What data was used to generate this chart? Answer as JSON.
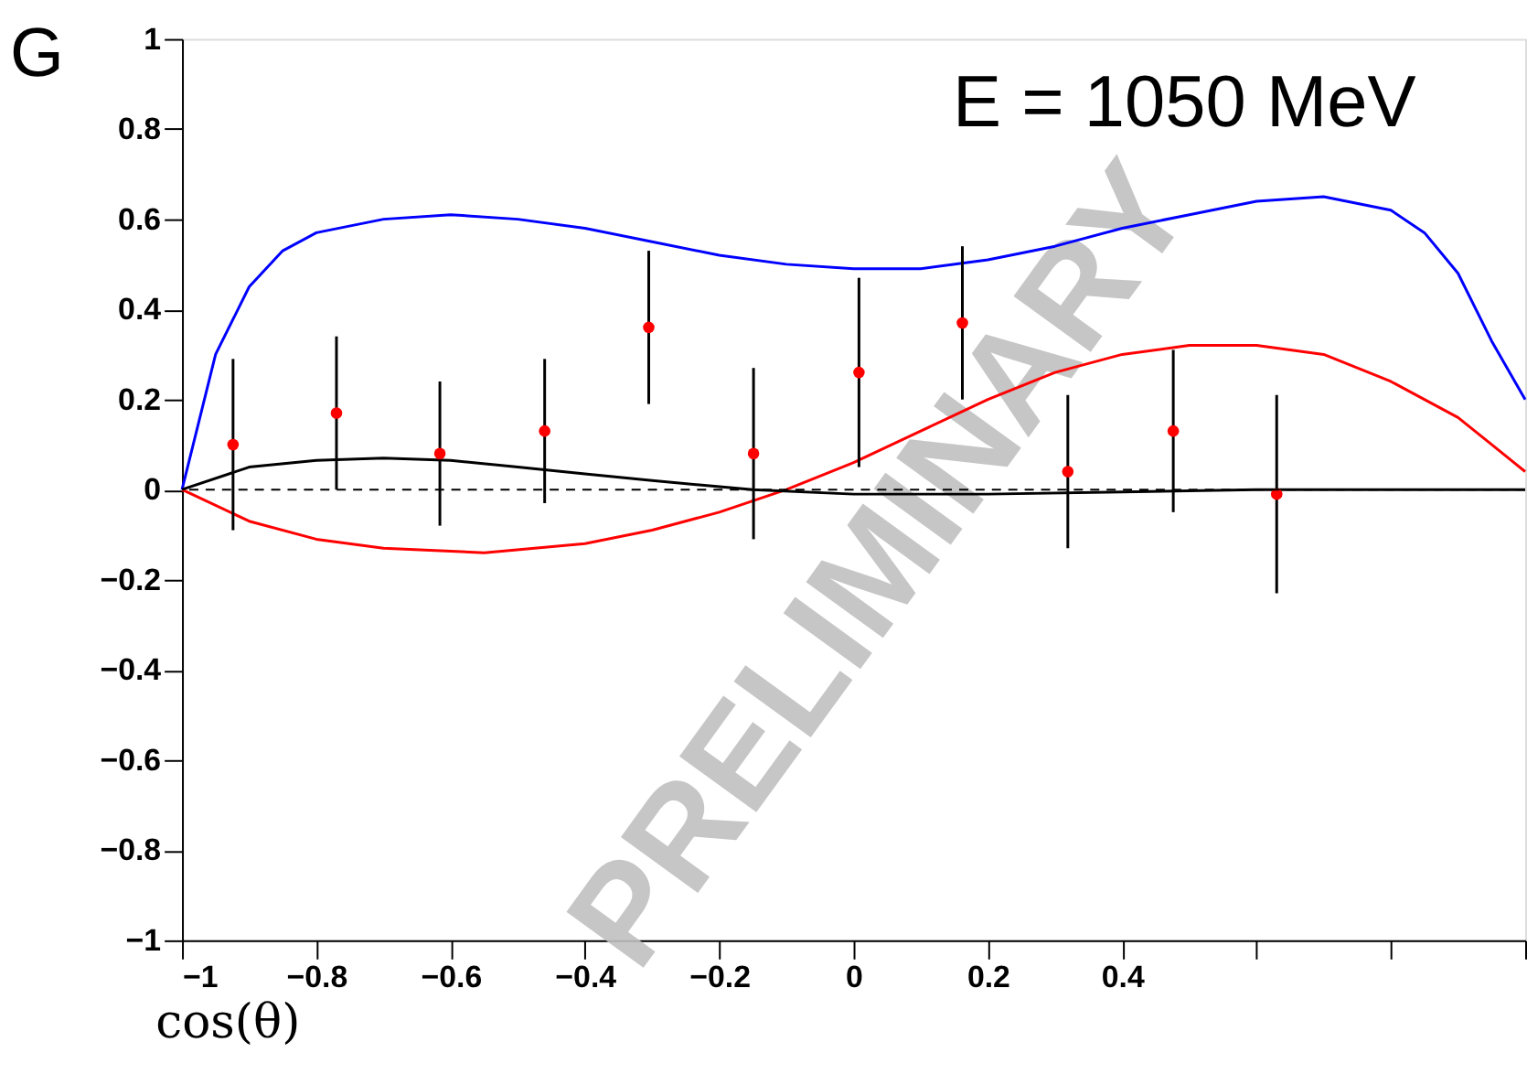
{
  "chart_data": {
    "type": "scatter",
    "title": "E = 1050 MeV",
    "xlabel": "cos(θ)",
    "ylabel": "G",
    "xlim": [
      -1,
      1
    ],
    "ylim": [
      -1,
      1
    ],
    "xticks": [
      -1,
      -0.8,
      -0.6,
      -0.4,
      -0.2,
      0,
      0.2,
      0.4,
      {
        "value": 0.6,
        "label": null
      },
      {
        "value": 0.8,
        "label": null
      },
      {
        "value": 1,
        "label": null
      }
    ],
    "yticks": [
      -1,
      -0.8,
      -0.6,
      -0.4,
      -0.2,
      0,
      0.2,
      0.4,
      0.6,
      0.8,
      1
    ],
    "grid": false,
    "legend": false,
    "ref_lines": [
      {
        "axis": "y",
        "value": 0,
        "label": null,
        "color": "#000000",
        "line_style": "dashed"
      }
    ],
    "annotations": [
      "PRELIMINARY"
    ],
    "series": [
      {
        "type": "line",
        "color": "#0000ff",
        "x": [
          -1,
          -0.95,
          -0.9,
          -0.85,
          -0.8,
          -0.7,
          -0.6,
          -0.5,
          -0.4,
          -0.3,
          -0.2,
          -0.1,
          0,
          0.1,
          0.2,
          0.3,
          0.4,
          0.5,
          0.6,
          0.7,
          0.8,
          0.85,
          0.9,
          0.95,
          1
        ],
        "values": [
          0,
          0.3,
          0.45,
          0.53,
          0.57,
          0.6,
          0.61,
          0.6,
          0.58,
          0.55,
          0.52,
          0.5,
          0.49,
          0.49,
          0.51,
          0.54,
          0.58,
          0.61,
          0.64,
          0.65,
          0.62,
          0.57,
          0.48,
          0.33,
          0.2
        ]
      },
      {
        "type": "line",
        "color": "#ff0000",
        "x": [
          -1,
          -0.9,
          -0.8,
          -0.7,
          -0.55,
          -0.4,
          -0.3,
          -0.2,
          -0.1,
          0,
          0.1,
          0.2,
          0.3,
          0.4,
          0.5,
          0.6,
          0.7,
          0.8,
          0.9,
          0.95,
          1
        ],
        "values": [
          0,
          -0.07,
          -0.11,
          -0.13,
          -0.14,
          -0.12,
          -0.09,
          -0.05,
          0,
          0.06,
          0.13,
          0.2,
          0.26,
          0.3,
          0.32,
          0.32,
          0.3,
          0.24,
          0.16,
          0.1,
          0.04
        ]
      },
      {
        "type": "line",
        "color": "#000000",
        "x": [
          -1,
          -0.9,
          -0.8,
          -0.7,
          -0.6,
          -0.5,
          -0.4,
          -0.3,
          -0.15,
          0,
          0.2,
          0.4,
          0.6,
          1
        ],
        "values": [
          0,
          0.05,
          0.065,
          0.07,
          0.065,
          0.05,
          0.035,
          0.02,
          0,
          -0.01,
          -0.01,
          -0.005,
          0,
          0
        ]
      },
      {
        "marker": "circle",
        "color": "#ff0000",
        "x": [
          -0.924,
          -0.77,
          -0.616,
          -0.46,
          -0.305,
          -0.149,
          0.008,
          0.162,
          0.319,
          0.476,
          0.63
        ],
        "values": [
          0.1,
          0.17,
          0.08,
          0.13,
          0.36,
          0.08,
          0.26,
          0.37,
          0.04,
          0.13,
          -0.01
        ],
        "errors": [
          0.19,
          0.17,
          0.16,
          0.16,
          0.17,
          0.19,
          0.21,
          0.17,
          0.17,
          0.18,
          0.22
        ]
      }
    ]
  }
}
